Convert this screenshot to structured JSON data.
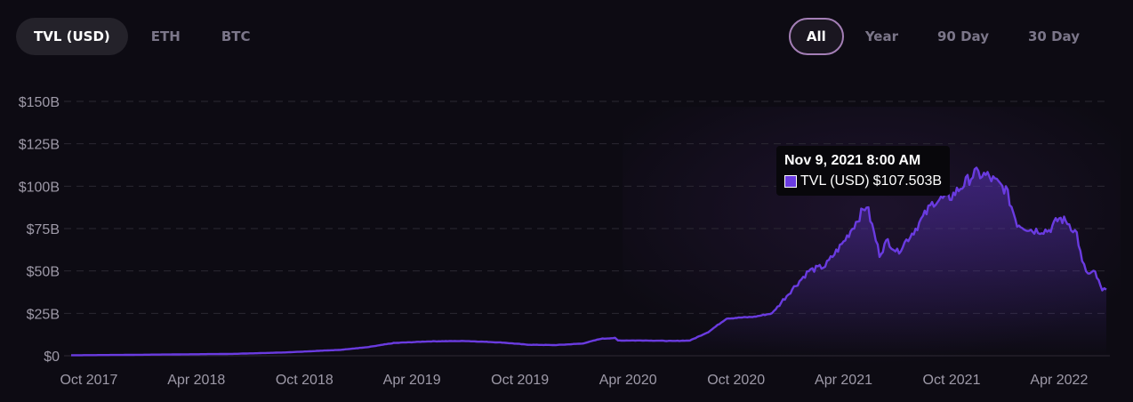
{
  "metric_tabs": [
    {
      "label": "TVL (USD)",
      "active": true
    },
    {
      "label": "ETH",
      "active": false
    },
    {
      "label": "BTC",
      "active": false
    }
  ],
  "range_tabs": [
    {
      "label": "All",
      "active": true
    },
    {
      "label": "Year",
      "active": false
    },
    {
      "label": "90 Day",
      "active": false
    },
    {
      "label": "30 Day",
      "active": false
    }
  ],
  "colors": {
    "line": "#6a3be0",
    "area": "#6a3be0",
    "accent": "#a47fb6",
    "swatch": "#6a3be0"
  },
  "tooltip": {
    "title": "Nov 9, 2021 8:00 AM",
    "label": "TVL (USD)",
    "value": "$107.503B"
  },
  "chart_data": {
    "type": "area",
    "series": [
      {
        "name": "TVL (USD)",
        "unit": "B USD"
      }
    ],
    "y_ticks": [
      "$0",
      "$25B",
      "$50B",
      "$75B",
      "$100B",
      "$125B",
      "$150B"
    ],
    "y_tick_values": [
      0,
      25,
      50,
      75,
      100,
      125,
      150
    ],
    "x_ticks": [
      "Oct 2017",
      "Apr 2018",
      "Oct 2018",
      "Apr 2019",
      "Oct 2019",
      "Apr 2020",
      "Oct 2020",
      "Apr 2021",
      "Oct 2021",
      "Apr 2022"
    ],
    "x_tick_dates": [
      "2017-10-01",
      "2018-04-01",
      "2018-10-01",
      "2019-04-01",
      "2019-10-01",
      "2020-04-01",
      "2020-10-01",
      "2021-04-01",
      "2021-10-01",
      "2022-04-01"
    ],
    "ylim": [
      0,
      150
    ],
    "xlim": [
      "2017-09-01",
      "2022-06-20"
    ],
    "grid": true,
    "points": [
      [
        "2017-09-01",
        0.3
      ],
      [
        "2017-12-01",
        0.5
      ],
      [
        "2018-03-01",
        0.8
      ],
      [
        "2018-06-01",
        1.1
      ],
      [
        "2018-09-01",
        2.0
      ],
      [
        "2018-12-01",
        3.5
      ],
      [
        "2019-01-15",
        5.0
      ],
      [
        "2019-03-01",
        7.5
      ],
      [
        "2019-05-01",
        8.5
      ],
      [
        "2019-07-01",
        8.7
      ],
      [
        "2019-09-01",
        7.8
      ],
      [
        "2019-10-15",
        6.5
      ],
      [
        "2019-12-01",
        6.3
      ],
      [
        "2020-01-15",
        7.2
      ],
      [
        "2020-02-15",
        10.0
      ],
      [
        "2020-03-10",
        10.5
      ],
      [
        "2020-03-15",
        9.0
      ],
      [
        "2020-05-01",
        9.0
      ],
      [
        "2020-06-15",
        8.7
      ],
      [
        "2020-07-15",
        9.0
      ],
      [
        "2020-08-15",
        14.0
      ],
      [
        "2020-09-15",
        22.0
      ],
      [
        "2020-11-01",
        23.0
      ],
      [
        "2020-12-01",
        25.0
      ],
      [
        "2021-01-01",
        38.0
      ],
      [
        "2021-02-01",
        50.0
      ],
      [
        "2021-03-01",
        53.0
      ],
      [
        "2021-04-01",
        67.0
      ],
      [
        "2021-05-10",
        89.0
      ],
      [
        "2021-06-01",
        60.0
      ],
      [
        "2021-06-15",
        68.0
      ],
      [
        "2021-07-01",
        61.0
      ],
      [
        "2021-08-01",
        75.0
      ],
      [
        "2021-09-01",
        91.0
      ],
      [
        "2021-10-01",
        94.0
      ],
      [
        "2021-11-09",
        107.5
      ],
      [
        "2021-12-01",
        106.0
      ],
      [
        "2022-01-01",
        98.0
      ],
      [
        "2022-01-20",
        78.0
      ],
      [
        "2022-02-15",
        74.0
      ],
      [
        "2022-03-15",
        74.0
      ],
      [
        "2022-04-01",
        81.0
      ],
      [
        "2022-04-15",
        79.0
      ],
      [
        "2022-05-01",
        72.0
      ],
      [
        "2022-05-10",
        55.0
      ],
      [
        "2022-05-20",
        48.0
      ],
      [
        "2022-06-01",
        49.0
      ],
      [
        "2022-06-13",
        38.0
      ],
      [
        "2022-06-20",
        39.0
      ]
    ]
  }
}
